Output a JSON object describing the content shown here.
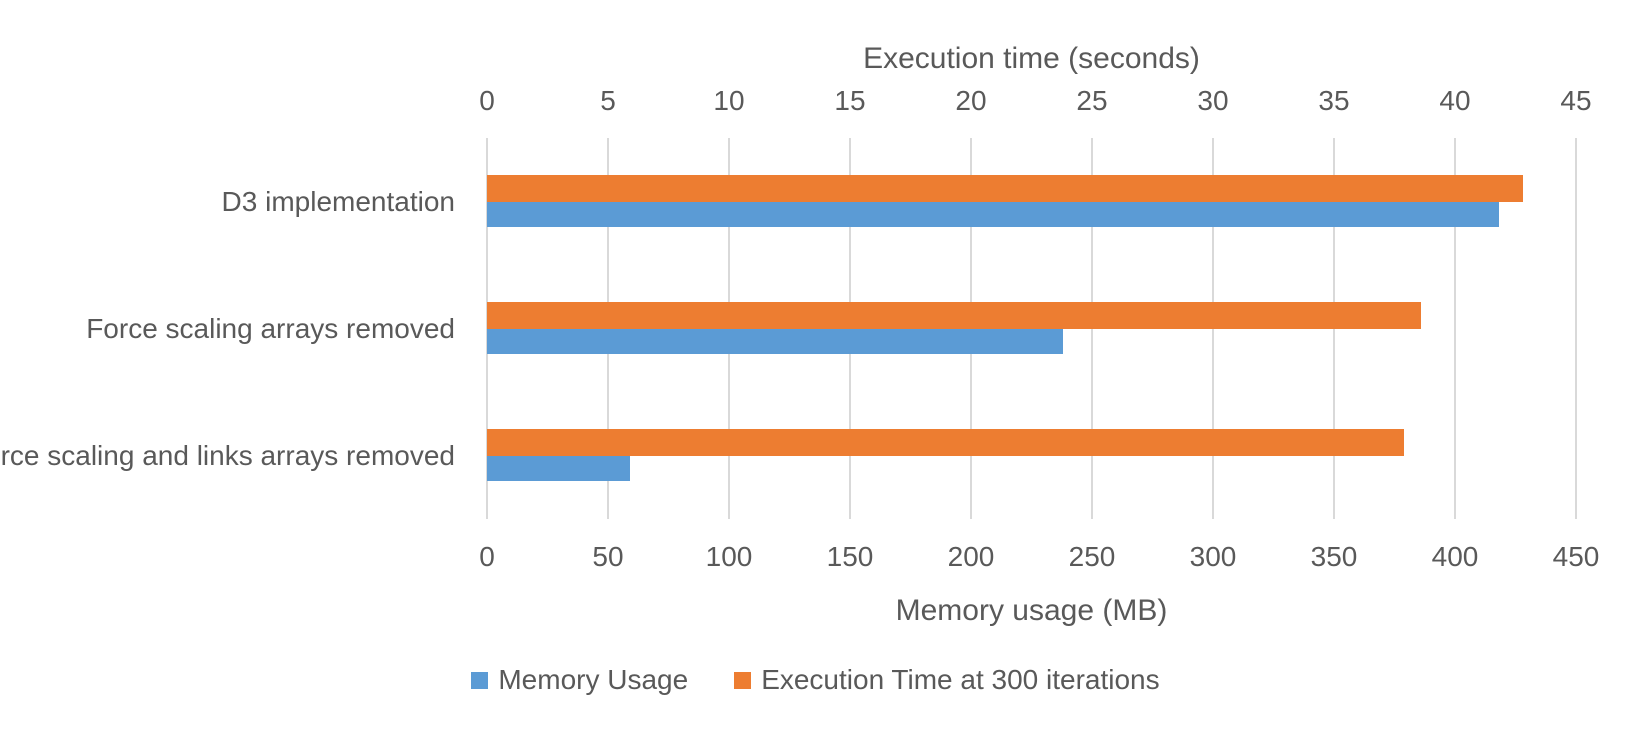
{
  "chart_data": {
    "type": "bar",
    "orientation": "horizontal",
    "categories": [
      "D3 implementation",
      "Force scaling arrays removed",
      "Force scaling and links arrays removed"
    ],
    "series": [
      {
        "name": "Memory Usage",
        "axis": "bottom",
        "color": "#5b9bd5",
        "values": [
          418,
          238,
          59
        ]
      },
      {
        "name": "Execution Time at 300 iterations",
        "axis": "top",
        "color": "#ed7d31",
        "values": [
          42.8,
          38.6,
          37.9
        ]
      }
    ],
    "axes": {
      "top": {
        "label": "Execution time (seconds)",
        "min": 0,
        "max": 45,
        "step": 5,
        "ticks": [
          0,
          5,
          10,
          15,
          20,
          25,
          30,
          35,
          40,
          45
        ]
      },
      "bottom": {
        "label": "Memory usage (MB)",
        "min": 0,
        "max": 450,
        "step": 50,
        "ticks": [
          0,
          50,
          100,
          150,
          200,
          250,
          300,
          350,
          400,
          450
        ]
      }
    },
    "legend": {
      "position": "bottom-center",
      "items": [
        {
          "label": "Memory Usage",
          "color": "#5b9bd5"
        },
        {
          "label": "Execution Time at 300 iterations",
          "color": "#ed7d31"
        }
      ]
    },
    "grid": true,
    "colors": {
      "text": "#595959",
      "gridline": "#d9d9d9",
      "background": "#ffffff"
    }
  }
}
